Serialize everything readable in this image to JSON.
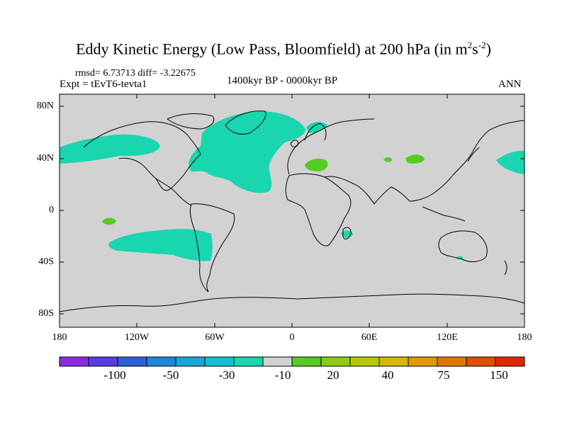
{
  "title": {
    "main": "Eddy Kinetic Energy (Low Pass, Bloomfield) at 200 hPa (in m",
    "sup1": "2",
    "mid": "s",
    "sup2": "-2",
    "end": ")"
  },
  "stats": "rmsd= 6.73713 diff= -3.22675",
  "experiment": "Expt = tEvT6-tevta1",
  "period": "1400kyr BP - 0000kyr BP",
  "season": "ANN",
  "lat_labels": [
    "80N",
    "40N",
    "0",
    "40S",
    "80S"
  ],
  "lon_labels": [
    "180",
    "120W",
    "60W",
    "0",
    "60E",
    "120E",
    "180"
  ],
  "colorbar": {
    "colors": [
      "#8a2be2",
      "#5a3ce0",
      "#2e5fd8",
      "#1f86d8",
      "#19a6d6",
      "#13c2d2",
      "#1ad6b0",
      "#d2d2d2",
      "#55cc22",
      "#8ccc10",
      "#b8c800",
      "#d6b800",
      "#e09a00",
      "#e07800",
      "#e05000",
      "#e02800"
    ],
    "labels": [
      "-100",
      "-50",
      "-30",
      "-10",
      "20",
      "40",
      "75",
      "150"
    ]
  },
  "colors": {
    "ocean_land_background": "#d2d2d2",
    "negative_anomaly_fill": "#1ad6b0",
    "positive_anomaly_fill": "#55cc22",
    "coastline": "#000000"
  }
}
